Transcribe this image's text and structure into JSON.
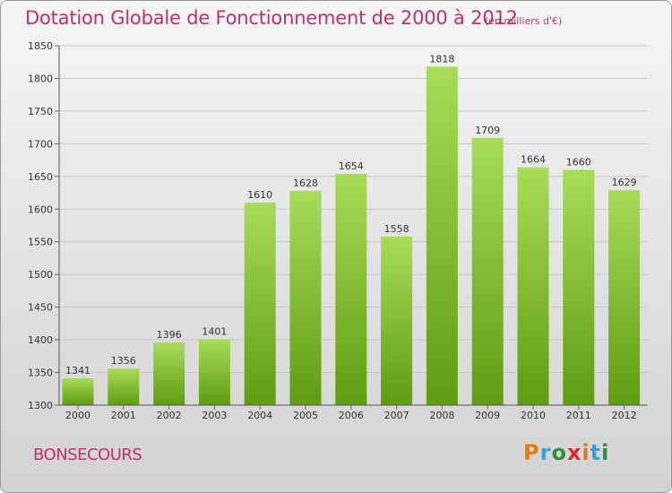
{
  "header": {
    "title": "Dotation Globale de Fonctionnement de 2000 à 2012",
    "unit": "(en milliers d'€)"
  },
  "footer": {
    "commune": "BONSECOURS",
    "logo": [
      "P",
      "r",
      "o",
      "x",
      "i",
      "t",
      "i"
    ],
    "logo_colors": [
      "#e07a1a",
      "#3aa0d8",
      "#2f8f3a",
      "#e0262d",
      "#e07a1a",
      "#3aa0d8",
      "#2f8f3a"
    ]
  },
  "colors": {
    "bar_light": "#a8dc5a",
    "bar_dark": "#5f9c10",
    "grid": "#c8c8c8",
    "title": "#c0306a"
  },
  "chart_data": {
    "type": "bar",
    "title": "Dotation Globale de Fonctionnement de 2000 à 2012",
    "subtitle": "(en milliers d'€)",
    "xlabel": "",
    "ylabel": "",
    "categories": [
      "2000",
      "2001",
      "2002",
      "2003",
      "2004",
      "2005",
      "2006",
      "2007",
      "2008",
      "2009",
      "2010",
      "2011",
      "2012"
    ],
    "values": [
      1341,
      1356,
      1396,
      1401,
      1610,
      1628,
      1654,
      1558,
      1818,
      1709,
      1664,
      1660,
      1629
    ],
    "ylim": [
      1300,
      1850
    ],
    "yticks": [
      1300,
      1350,
      1400,
      1450,
      1500,
      1550,
      1600,
      1650,
      1700,
      1750,
      1800,
      1850
    ],
    "grid": true
  }
}
